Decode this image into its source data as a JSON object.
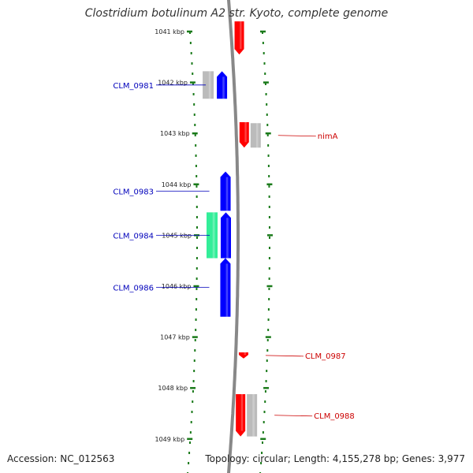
{
  "title": "Clostridium botulinum A2 str. Kyoto, complete genome",
  "footer": {
    "accession": "Accession: NC_012563",
    "summary": "Topology: circular; Length: 4,155,278 bp; Genes: 3,977"
  },
  "colors": {
    "backbone": "#888888",
    "tick": "#1a7a1a",
    "forward_gene": "#ff0000",
    "reverse_gene": "#0000ff",
    "pseudo_gene": "#bbbbbb",
    "rna_gene": "#33ee99",
    "forward_label": "#cc0000",
    "reverse_label": "#0000bb"
  },
  "scale": {
    "unit": "kbp",
    "ticks": [
      "1041 kbp",
      "1042 kbp",
      "1043 kbp",
      "1044 kbp",
      "1045 kbp",
      "1046 kbp",
      "1047 kbp",
      "1048 kbp",
      "1049 kbp"
    ]
  },
  "features": [
    {
      "strand": "forward",
      "type": "cds",
      "start_kbp": 1040.8,
      "end_kbp": 1041.45
    },
    {
      "strand": "reverse",
      "type": "pseudo",
      "start_kbp": 1041.78,
      "end_kbp": 1042.32
    },
    {
      "strand": "reverse",
      "type": "cds",
      "start_kbp": 1041.78,
      "end_kbp": 1042.32,
      "label": "CLM_0981"
    },
    {
      "strand": "forward",
      "type": "cds",
      "start_kbp": 1042.78,
      "end_kbp": 1043.28
    },
    {
      "strand": "forward",
      "type": "pseudo",
      "start_kbp": 1042.8,
      "end_kbp": 1043.28,
      "label": "nimA"
    },
    {
      "strand": "reverse",
      "type": "cds",
      "start_kbp": 1043.75,
      "end_kbp": 1044.52,
      "label": "CLM_0983"
    },
    {
      "strand": "reverse",
      "type": "rna",
      "start_kbp": 1044.55,
      "end_kbp": 1045.45
    },
    {
      "strand": "reverse",
      "type": "cds",
      "start_kbp": 1044.55,
      "end_kbp": 1045.45,
      "label": "CLM_0984"
    },
    {
      "strand": "reverse",
      "type": "cds",
      "start_kbp": 1045.45,
      "end_kbp": 1046.6,
      "label": "CLM_0986"
    },
    {
      "strand": "forward",
      "type": "cds",
      "start_kbp": 1047.3,
      "end_kbp": 1047.42,
      "label": "CLM_0987"
    },
    {
      "strand": "forward",
      "type": "cds",
      "start_kbp": 1048.12,
      "end_kbp": 1048.95
    },
    {
      "strand": "forward",
      "type": "pseudo",
      "start_kbp": 1048.12,
      "end_kbp": 1048.95,
      "label": "CLM_0988"
    }
  ]
}
